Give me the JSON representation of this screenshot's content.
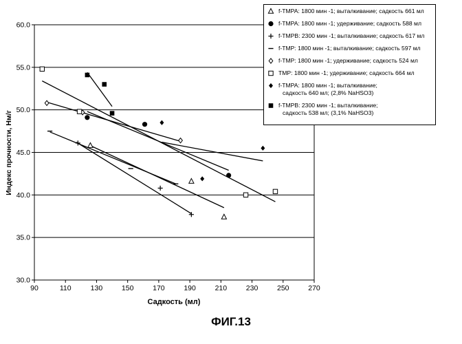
{
  "figure_caption": "ФИГ.13",
  "chart_data": {
    "type": "scatter",
    "title": "",
    "xlabel": "Садкость (мл)",
    "ylabel": "Индекс прочности, Нм/г",
    "xlim": [
      90,
      270
    ],
    "ylim": [
      30.0,
      60.0
    ],
    "x_ticks": [
      "90",
      "110",
      "130",
      "150",
      "170",
      "190",
      "210",
      "230",
      "250",
      "270"
    ],
    "y_ticks": [
      "30.0",
      "35.0",
      "40.0",
      "45.0",
      "50.0",
      "55.0",
      "60.0"
    ],
    "grid": "horizontal",
    "legend_position": "top-right",
    "series": [
      {
        "name": "f-TMPA: 1800 мин -1; выталкивание; садкость 661 мл",
        "name_lines": [
          "f-TMPA: 1800 мин -1; выталкивание; садкость 661 мл"
        ],
        "marker": "triangle-open",
        "points": [
          [
            126,
            45.8
          ],
          [
            191,
            41.6
          ],
          [
            212,
            37.4
          ]
        ],
        "trendline": [
          [
            126,
            45.8
          ],
          [
            212,
            38.5
          ]
        ]
      },
      {
        "name": "f-TMPA: 1800 мин -1; удерживание; садкость 588 мл",
        "name_lines": [
          "f-TMPA: 1800 мин -1; удерживание; садкость 588 мл"
        ],
        "marker": "circle-filled",
        "points": [
          [
            124,
            49.1
          ],
          [
            161,
            48.3
          ],
          [
            215,
            42.3
          ]
        ],
        "trendline": [
          [
            124,
            49.8
          ],
          [
            215,
            42.9
          ]
        ]
      },
      {
        "name": "f-TMPB: 2300 мин -1; выталкивание; садкость 617 мл",
        "name_lines": [
          "f-TMPB: 2300 мин -1; выталкивание; садкость 617 мл"
        ],
        "marker": "plus",
        "points": [
          [
            118,
            46.1
          ],
          [
            171,
            40.8
          ],
          [
            191,
            37.7
          ]
        ],
        "trendline": [
          [
            117,
            46.2
          ],
          [
            191,
            37.8
          ]
        ]
      },
      {
        "name": "f-TMP: 1800 мин -1; выталкивание; садкость 597 мл",
        "name_lines": [
          "f-TMP: 1800 мин -1; выталкивание; садкость 597 мл"
        ],
        "marker": "dash",
        "points": [
          [
            100,
            47.5
          ],
          [
            152,
            43.1
          ],
          [
            181,
            41.3
          ]
        ],
        "trendline": [
          [
            100,
            47.4
          ],
          [
            181,
            41.3
          ]
        ]
      },
      {
        "name": "f-TMP: 1800 мин -1; удерживание; садкость 524 мл",
        "name_lines": [
          "f-TMP: 1800 мин -1; удерживание; садкость 524 мл"
        ],
        "marker": "diamond-open",
        "points": [
          [
            98,
            50.8
          ],
          [
            121,
            49.7
          ],
          [
            184,
            46.4
          ]
        ],
        "trendline": [
          [
            98,
            50.9
          ],
          [
            184,
            46.3
          ]
        ]
      },
      {
        "name": "TMP: 1800 мин -1; удерживание; садкость 664 мл",
        "name_lines": [
          "TMP: 1800 мин -1; удерживание; садкость 664 мл"
        ],
        "marker": "square-open",
        "points": [
          [
            95,
            54.8
          ],
          [
            119,
            49.8
          ],
          [
            226,
            40.0
          ],
          [
            245,
            40.4
          ]
        ],
        "trendline": [
          [
            95,
            53.4
          ],
          [
            245,
            39.2
          ]
        ]
      },
      {
        "name": "f-TMPA: 1800 мин -1; выталкивание; садкость 640 мл; (2,8% NaHSO3)",
        "name_lines": [
          "f-TMPA: 1800 мин -1; выталкивание;",
          "садкость 640 мл; (2,8% NaHSO3)"
        ],
        "marker": "diamond-filled",
        "points": [
          [
            172,
            48.5
          ],
          [
            198,
            41.9
          ],
          [
            237,
            45.5
          ]
        ],
        "trendline": [
          [
            172,
            46.2
          ],
          [
            237,
            44.0
          ]
        ]
      },
      {
        "name": "f-TMPB: 2300 мин -1; выталкивание; садкость 538 мл; (3,1% NaHSO3)",
        "name_lines": [
          "f-TMPB: 2300 мин -1; выталкивание;",
          "садкость 538 мл; (3,1% NaHSO3)"
        ],
        "marker": "square-filled",
        "points": [
          [
            124,
            54.1
          ],
          [
            135,
            53.0
          ],
          [
            140,
            49.6
          ]
        ],
        "trendline": [
          [
            124,
            54.4
          ],
          [
            140,
            50.4
          ]
        ]
      }
    ]
  }
}
